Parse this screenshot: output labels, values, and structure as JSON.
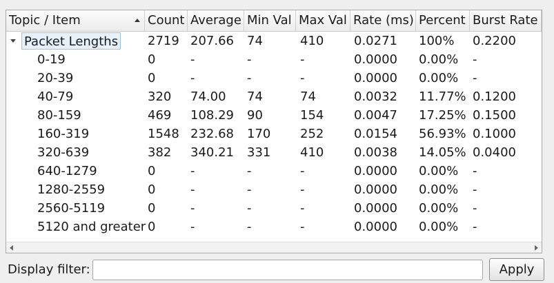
{
  "table": {
    "columns": [
      "Topic / Item",
      "Count",
      "Average",
      "Min Val",
      "Max Val",
      "Rate (ms)",
      "Percent",
      "Burst Rate"
    ],
    "rows": [
      [
        "Packet Lengths",
        "2719",
        "207.66",
        "74",
        "410",
        "0.0271",
        "100%",
        "0.2200"
      ],
      [
        "0-19",
        "0",
        "-",
        "-",
        "-",
        "0.0000",
        "0.00%",
        "-"
      ],
      [
        "20-39",
        "0",
        "-",
        "-",
        "-",
        "0.0000",
        "0.00%",
        "-"
      ],
      [
        "40-79",
        "320",
        "74.00",
        "74",
        "74",
        "0.0032",
        "11.77%",
        "0.1200"
      ],
      [
        "80-159",
        "469",
        "108.29",
        "90",
        "154",
        "0.0047",
        "17.25%",
        "0.1500"
      ],
      [
        "160-319",
        "1548",
        "232.68",
        "170",
        "252",
        "0.0154",
        "56.93%",
        "0.1000"
      ],
      [
        "320-639",
        "382",
        "340.21",
        "331",
        "410",
        "0.0038",
        "14.05%",
        "0.0400"
      ],
      [
        "640-1279",
        "0",
        "-",
        "-",
        "-",
        "0.0000",
        "0.00%",
        "-"
      ],
      [
        "1280-2559",
        "0",
        "-",
        "-",
        "-",
        "0.0000",
        "0.00%",
        "-"
      ],
      [
        "2560-5119",
        "0",
        "-",
        "-",
        "-",
        "0.0000",
        "0.00%",
        "-"
      ],
      [
        "5120 and greater",
        "0",
        "-",
        "-",
        "-",
        "0.0000",
        "0.00%",
        "-"
      ]
    ]
  },
  "filter": {
    "label": "Display filter:",
    "value": "",
    "placeholder": ""
  },
  "apply_label": "Apply"
}
